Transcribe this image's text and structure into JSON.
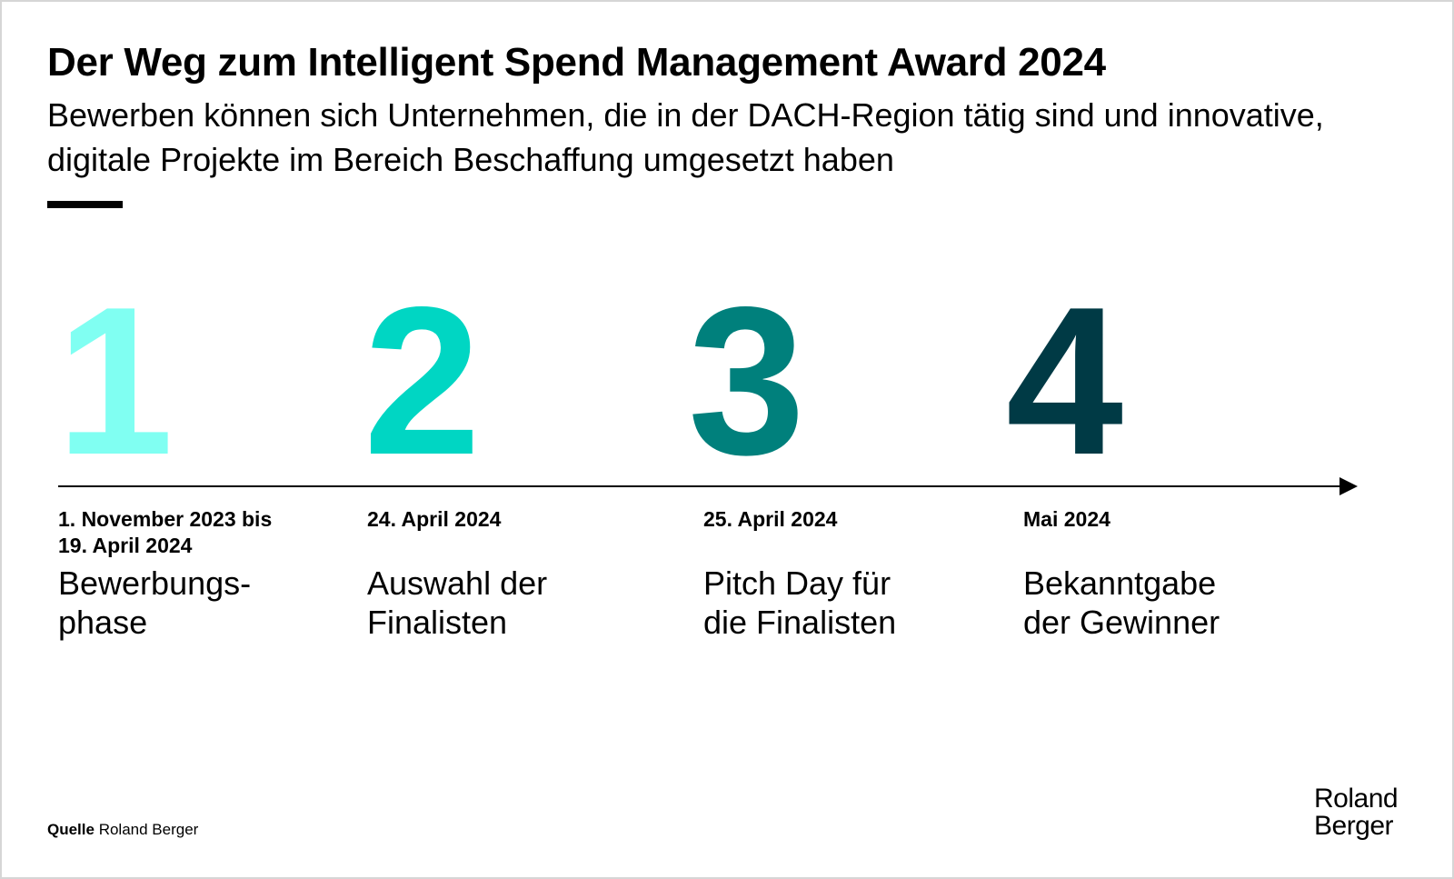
{
  "header": {
    "title": "Der Weg zum Intelligent Spend Management Award 2024",
    "subtitle": "Bewerben können sich Unternehmen, die in der DACH-Region tätig sind und innovative, digitale Projekte im Bereich Beschaffung umgesetzt haben"
  },
  "steps": [
    {
      "number": "1",
      "color": "#80fff2",
      "date_line1": "1. November 2023 bis",
      "date_line2": "19. April 2024",
      "label_line1": "Bewerbungs-",
      "label_line2": "phase"
    },
    {
      "number": "2",
      "color": "#00d6c3",
      "date_line1": "24. April 2024",
      "date_line2": "",
      "label_line1": "Auswahl der",
      "label_line2": "Finalisten"
    },
    {
      "number": "3",
      "color": "#00807c",
      "date_line1": "25. April 2024",
      "date_line2": "",
      "label_line1": "Pitch Day für",
      "label_line2": "die Finalisten"
    },
    {
      "number": "4",
      "color": "#003a45",
      "date_line1": "Mai 2024",
      "date_line2": "",
      "label_line1": "Bekanntgabe",
      "label_line2": "der Gewinner"
    }
  ],
  "footer": {
    "source_label": "Quelle",
    "source_value": "Roland Berger",
    "logo_line1": "Roland",
    "logo_line2": "Berger"
  },
  "colors": {
    "text": "#000000",
    "rule": "#000000",
    "timeline": "#000000",
    "frame_border": "#d6d6d6"
  }
}
